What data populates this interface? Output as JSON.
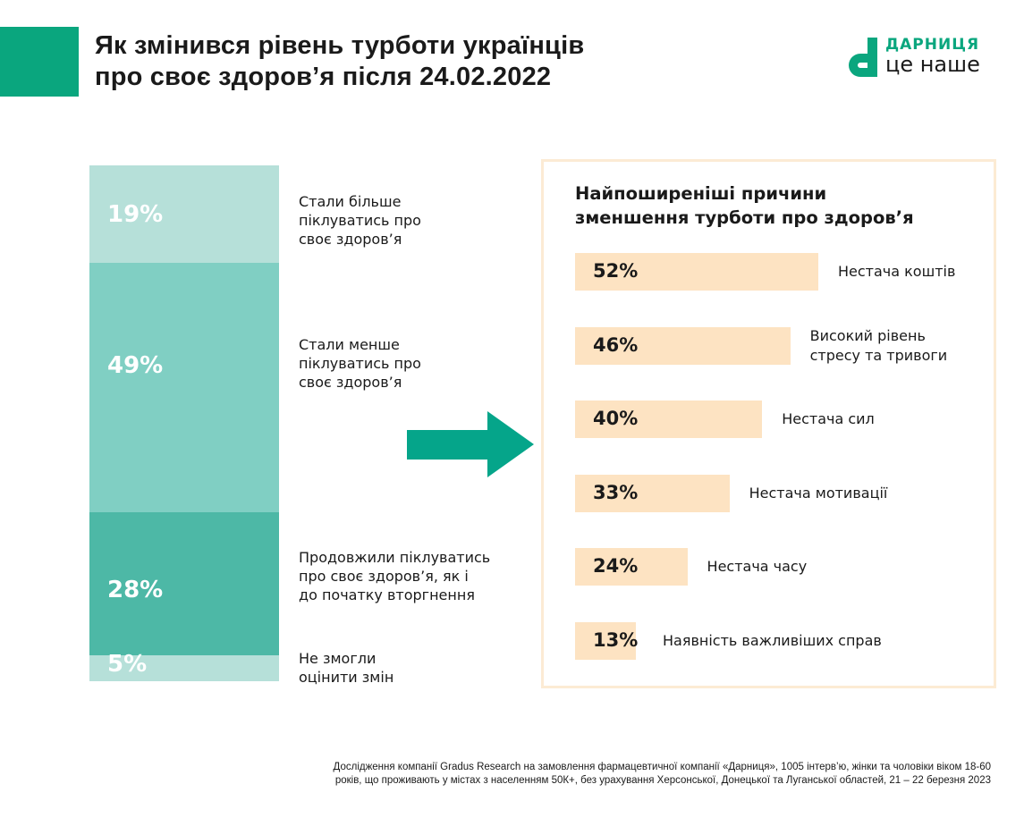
{
  "header": {
    "title_line1": "Як змінився рівень турботи українців",
    "title_line2": "про своє здоров’я після 24.02.2022"
  },
  "logo": {
    "line1": "ДАРНИЦЯ",
    "line2": "це наше",
    "color": "#0aa67e"
  },
  "chart_data": [
    {
      "type": "bar",
      "stacked": true,
      "orientation": "vertical",
      "categories": [
        "Стали більше піклуватись про своє здоров’я",
        "Стали менше піклуватись про своє здоров’я",
        "Продовжили піклуватись про своє здоров’я, як і до початку вторгнення",
        "Не змогли оцінити змін"
      ],
      "labels": [
        [
          "Стали більше",
          "піклуватись про",
          "своє здоров’я"
        ],
        [
          "Стали менше",
          "піклуватись про",
          "своє здоров’я"
        ],
        [
          "Продовжили піклуватись",
          "про своє здоров’я, як і",
          "до початку вторгнення"
        ],
        [
          "Не змогли",
          "оцінити змін"
        ]
      ],
      "values": [
        19,
        49,
        28,
        5
      ],
      "data_labels": [
        "19%",
        "49%",
        "28%",
        "5%"
      ],
      "colors": [
        "#b6e0d9",
        "#80cfc3",
        "#4db8a6",
        "#b6e0d9"
      ]
    },
    {
      "type": "bar",
      "orientation": "horizontal",
      "title_line1": "Найпоширеніші причини",
      "title_line2": "зменшення турботи про здоров’я",
      "categories": [
        [
          "Нестача коштів"
        ],
        [
          "Високий рівень",
          "стресу та тривоги"
        ],
        [
          "Нестача сил"
        ],
        [
          "Нестача мотивації"
        ],
        [
          "Нестача часу"
        ],
        [
          "Наявність важливіших справ"
        ]
      ],
      "values": [
        52,
        46,
        40,
        33,
        24,
        13
      ],
      "data_labels": [
        "52%",
        "46%",
        "40%",
        "33%",
        "24%",
        "13%"
      ],
      "color": "#fde3c2"
    }
  ],
  "arrow_color": "#05a58a",
  "footer": {
    "line1": "Дослідження компанії Gradus Research на замовлення фармацевтичної компанії «Дарниця», 1005 інтерв’ю, жінки та чоловіки віком 18-60",
    "line2": "років, що проживають у містах з населенням 50К+, без урахування Херсонської, Донецької та Луганської областей, 21 – 22 березня 2023"
  }
}
